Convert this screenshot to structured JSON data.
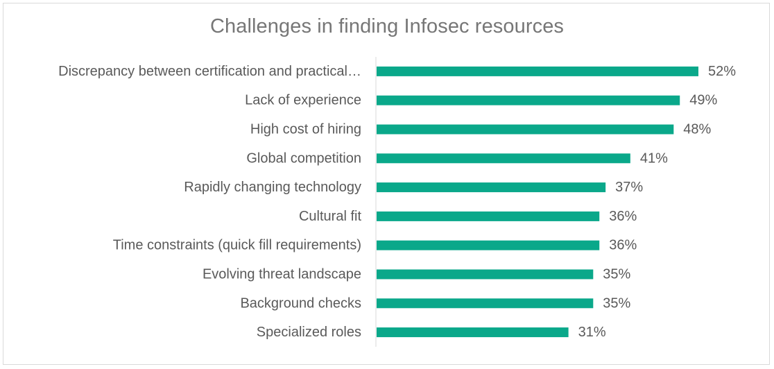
{
  "chart_data": {
    "type": "bar",
    "orientation": "horizontal",
    "title": "Challenges in finding Infosec resources",
    "categories": [
      "Discrepancy between certification and practical…",
      "Lack of experience",
      "High cost of hiring",
      "Global competition",
      "Rapidly changing technology",
      "Cultural fit",
      "Time constraints (quick fill requirements)",
      "Evolving threat landscape",
      "Background checks",
      "Specialized roles"
    ],
    "values": [
      52,
      49,
      48,
      41,
      37,
      36,
      36,
      35,
      35,
      31
    ],
    "value_labels": [
      "52%",
      "49%",
      "48%",
      "41%",
      "37%",
      "36%",
      "36%",
      "35%",
      "35%",
      "31%"
    ],
    "xlim": [
      0,
      60
    ],
    "grid": false,
    "legend": "none",
    "bar_color": "#0aa88a"
  }
}
